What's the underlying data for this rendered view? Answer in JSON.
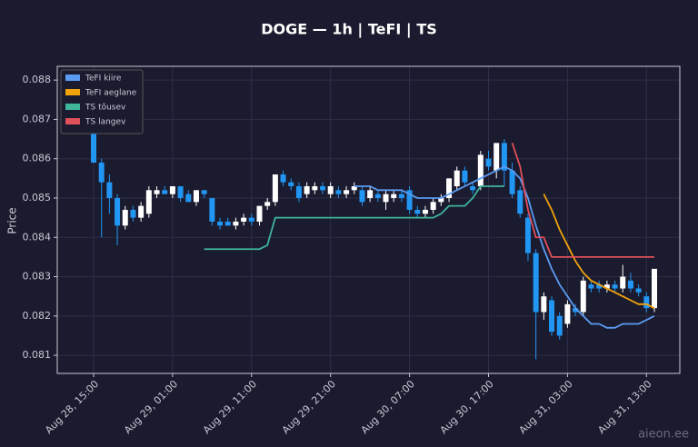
{
  "chart_data": {
    "type": "candlestick",
    "title": "DOGE — 1h  |  TeFI  |  TS",
    "y_label": "Price",
    "watermark": "aieon.ee",
    "up_color": "#ffffff",
    "down_color": "#2196f3",
    "grid": true,
    "legend": "upper left",
    "ylim": [
      0.08054,
      0.08835
    ],
    "yticks": [
      0.081,
      0.082,
      0.083,
      0.084,
      0.085,
      0.086,
      0.087,
      0.088
    ],
    "categories": [
      "Aug 28, 15:00",
      null,
      null,
      null,
      null,
      null,
      null,
      null,
      null,
      null,
      "Aug 29, 01:00",
      null,
      null,
      null,
      null,
      null,
      null,
      null,
      null,
      null,
      "Aug 29, 11:00",
      null,
      null,
      null,
      null,
      null,
      null,
      null,
      null,
      null,
      "Aug 29, 21:00",
      null,
      null,
      null,
      null,
      null,
      null,
      null,
      null,
      null,
      "Aug 30, 07:00",
      null,
      null,
      null,
      null,
      null,
      null,
      null,
      null,
      null,
      "Aug 30, 17:00",
      null,
      null,
      null,
      null,
      null,
      null,
      null,
      null,
      null,
      "Aug 31, 03:00",
      null,
      null,
      null,
      null,
      null,
      null,
      null,
      null,
      null,
      "Aug 31, 13:00",
      null
    ],
    "open": [
      0.0873,
      0.0859,
      0.0854,
      0.085,
      0.0843,
      0.0847,
      0.0845,
      0.0846,
      0.0851,
      0.0852,
      0.0851,
      0.0853,
      0.0851,
      0.0849,
      0.0852,
      0.085,
      0.0844,
      0.0844,
      0.0843,
      0.0844,
      0.0845,
      0.0844,
      0.0848,
      0.0849,
      0.0856,
      0.0854,
      0.0853,
      0.0851,
      0.0852,
      0.0853,
      0.0851,
      0.0852,
      0.0851,
      0.0852,
      0.0852,
      0.085,
      0.0851,
      0.0849,
      0.085,
      0.0851,
      0.0852,
      0.0847,
      0.0846,
      0.0847,
      0.0849,
      0.085,
      0.0853,
      0.0857,
      0.0853,
      0.0853,
      0.086,
      0.0857,
      0.0864,
      0.0857,
      0.0852,
      0.0845,
      0.0836,
      0.0821,
      0.0824,
      0.082,
      0.0818,
      0.0822,
      0.0821,
      0.0828,
      0.0828,
      0.0827,
      0.0828,
      0.0827,
      0.0829,
      0.0827,
      0.0825,
      0.0822
    ],
    "high": [
      0.0875,
      0.086,
      0.0856,
      0.0851,
      0.0848,
      0.0848,
      0.0849,
      0.0853,
      0.0853,
      0.0853,
      0.0853,
      0.0853,
      0.0852,
      0.0852,
      0.0852,
      0.085,
      0.0845,
      0.0845,
      0.0845,
      0.0846,
      0.0846,
      0.0848,
      0.085,
      0.0856,
      0.0857,
      0.0855,
      0.0854,
      0.0854,
      0.0854,
      0.0854,
      0.0854,
      0.0853,
      0.0853,
      0.0854,
      0.0853,
      0.0853,
      0.0852,
      0.0852,
      0.0852,
      0.0852,
      0.0853,
      0.0848,
      0.0848,
      0.085,
      0.0851,
      0.0855,
      0.0858,
      0.0858,
      0.0854,
      0.0862,
      0.0862,
      0.0864,
      0.0865,
      0.0859,
      0.0853,
      0.0846,
      0.0837,
      0.0826,
      0.0825,
      0.0821,
      0.0824,
      0.0823,
      0.083,
      0.0829,
      0.0829,
      0.0829,
      0.0829,
      0.0833,
      0.0831,
      0.0828,
      0.0826,
      0.0832
    ],
    "low": [
      0.0859,
      0.084,
      0.0846,
      0.0838,
      0.0842,
      0.0844,
      0.0844,
      0.0845,
      0.085,
      0.0851,
      0.085,
      0.0849,
      0.0849,
      0.0848,
      0.085,
      0.0843,
      0.0842,
      0.0843,
      0.0842,
      0.0843,
      0.0843,
      0.0843,
      0.0847,
      0.0848,
      0.0853,
      0.0852,
      0.0849,
      0.085,
      0.0851,
      0.0851,
      0.085,
      0.085,
      0.085,
      0.0851,
      0.0848,
      0.0849,
      0.0849,
      0.0847,
      0.0849,
      0.0849,
      0.0846,
      0.0845,
      0.0845,
      0.0846,
      0.0848,
      0.0849,
      0.0852,
      0.0853,
      0.0851,
      0.0852,
      0.0857,
      0.0855,
      0.0853,
      0.085,
      0.0845,
      0.0834,
      0.0809,
      0.0819,
      0.0815,
      0.0814,
      0.0817,
      0.082,
      0.082,
      0.0826,
      0.0826,
      0.0826,
      0.0826,
      0.0826,
      0.0826,
      0.0825,
      0.0821,
      0.0821
    ],
    "close": [
      0.0859,
      0.0854,
      0.085,
      0.0843,
      0.0847,
      0.0845,
      0.0848,
      0.0852,
      0.0852,
      0.0851,
      0.0853,
      0.085,
      0.0849,
      0.0852,
      0.0851,
      0.0844,
      0.0843,
      0.0843,
      0.0844,
      0.0845,
      0.0844,
      0.0848,
      0.0849,
      0.0856,
      0.0854,
      0.0853,
      0.085,
      0.0853,
      0.0853,
      0.0852,
      0.0853,
      0.0851,
      0.0852,
      0.0853,
      0.0849,
      0.0852,
      0.085,
      0.0851,
      0.0851,
      0.085,
      0.0847,
      0.0846,
      0.0847,
      0.0849,
      0.085,
      0.0855,
      0.0857,
      0.0854,
      0.0852,
      0.0861,
      0.0858,
      0.0864,
      0.0857,
      0.0851,
      0.0846,
      0.0836,
      0.0821,
      0.0825,
      0.0816,
      0.0815,
      0.0823,
      0.0821,
      0.0829,
      0.0827,
      0.0827,
      0.0828,
      0.0827,
      0.083,
      0.0827,
      0.0826,
      0.0822,
      0.0832
    ],
    "series": [
      {
        "name": "TeFI kiire",
        "color": "#5b9bf0",
        "values": [
          null,
          null,
          null,
          null,
          null,
          null,
          null,
          null,
          null,
          null,
          null,
          null,
          null,
          null,
          null,
          null,
          null,
          null,
          null,
          null,
          null,
          null,
          null,
          null,
          null,
          null,
          null,
          null,
          null,
          null,
          null,
          null,
          null,
          0.0853,
          0.0853,
          0.0853,
          0.0852,
          0.0852,
          0.0852,
          0.0852,
          0.0851,
          0.085,
          0.085,
          0.085,
          0.085,
          0.0851,
          0.0852,
          0.0853,
          0.0854,
          0.0855,
          0.0856,
          0.0857,
          0.0858,
          0.0857,
          0.0855,
          0.085,
          0.0843,
          0.0837,
          0.0832,
          0.0828,
          0.0825,
          0.0822,
          0.082,
          0.0818,
          0.0818,
          0.0817,
          0.0817,
          0.0818,
          0.0818,
          0.0818,
          0.0819,
          0.082
        ]
      },
      {
        "name": "TeFI aeglane",
        "color": "#f0a30a",
        "values": [
          null,
          null,
          null,
          null,
          null,
          null,
          null,
          null,
          null,
          null,
          null,
          null,
          null,
          null,
          null,
          null,
          null,
          null,
          null,
          null,
          null,
          null,
          null,
          null,
          null,
          null,
          null,
          null,
          null,
          null,
          null,
          null,
          null,
          null,
          null,
          null,
          null,
          null,
          null,
          null,
          null,
          null,
          null,
          null,
          null,
          null,
          null,
          null,
          null,
          null,
          null,
          null,
          null,
          null,
          null,
          null,
          null,
          0.0851,
          0.0847,
          0.0842,
          0.0838,
          0.0834,
          0.0831,
          0.0829,
          0.0828,
          0.0827,
          0.0826,
          0.0825,
          0.0824,
          0.0823,
          0.0823,
          0.0822
        ]
      },
      {
        "name": "TS tõusev",
        "color": "#3fb59a",
        "values": [
          null,
          null,
          null,
          null,
          null,
          null,
          null,
          null,
          null,
          null,
          null,
          null,
          null,
          null,
          0.0837,
          0.0837,
          0.0837,
          0.0837,
          0.0837,
          0.0837,
          0.0837,
          0.0837,
          0.0838,
          0.0845,
          0.0845,
          0.0845,
          0.0845,
          0.0845,
          0.0845,
          0.0845,
          0.0845,
          0.0845,
          0.0845,
          0.0845,
          0.0845,
          0.0845,
          0.0845,
          0.0845,
          0.0845,
          0.0845,
          0.0845,
          0.0845,
          0.0845,
          0.0845,
          0.0846,
          0.0848,
          0.0848,
          0.0848,
          0.085,
          0.0853,
          0.0853,
          0.0853,
          0.0853,
          null,
          null,
          null,
          null,
          null,
          null,
          null,
          null,
          null,
          null,
          null,
          null,
          null,
          null,
          null,
          null,
          null,
          null,
          null
        ]
      },
      {
        "name": "TS langev",
        "color": "#e0505a",
        "values": [
          null,
          null,
          null,
          null,
          null,
          null,
          null,
          null,
          null,
          null,
          null,
          null,
          null,
          null,
          null,
          null,
          null,
          null,
          null,
          null,
          null,
          null,
          null,
          null,
          null,
          null,
          null,
          null,
          null,
          null,
          null,
          null,
          null,
          null,
          null,
          null,
          null,
          null,
          null,
          null,
          null,
          null,
          null,
          null,
          null,
          null,
          null,
          null,
          null,
          null,
          null,
          null,
          null,
          0.0864,
          0.0858,
          0.0847,
          0.084,
          0.084,
          0.0835,
          0.0835,
          0.0835,
          0.0835,
          0.0835,
          0.0835,
          0.0835,
          0.0835,
          0.0835,
          0.0835,
          0.0835,
          0.0835,
          0.0835,
          0.0835
        ]
      }
    ]
  }
}
